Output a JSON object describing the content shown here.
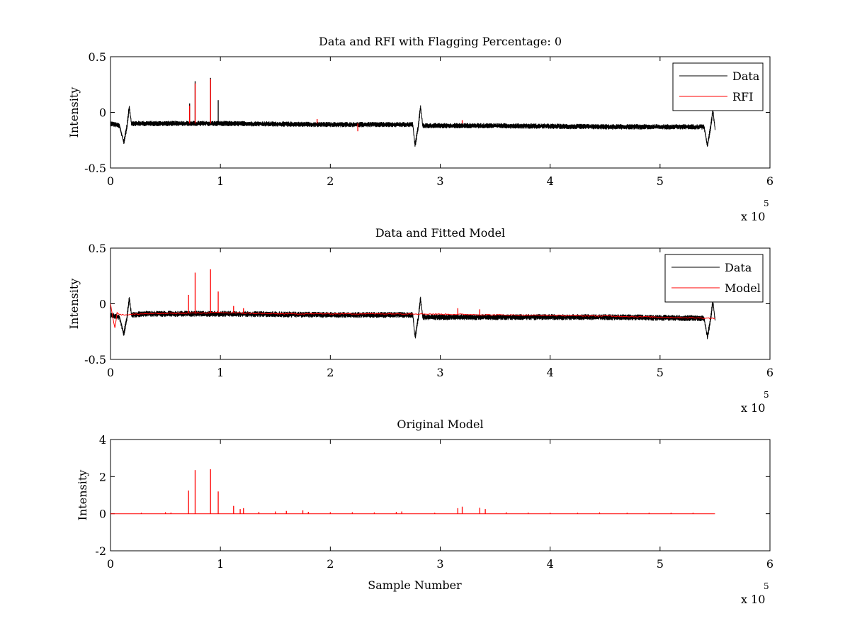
{
  "figure": {
    "background": "#ffffff"
  },
  "chart_data": [
    {
      "type": "line",
      "title": "Data and RFI with Flagging Percentage: 0",
      "xlabel": "",
      "ylabel": "Intensity",
      "xlim": [
        0,
        6
      ],
      "ylim": [
        -0.5,
        0.5
      ],
      "xticks": [
        "0",
        "1",
        "2",
        "3",
        "4",
        "5",
        "6"
      ],
      "yticks": [
        "0.5",
        "0",
        "-0.5"
      ],
      "x_multiplier": "x 10",
      "x_multiplier_exp": "5",
      "legend": {
        "placement": "top-right",
        "entries": [
          "Data",
          "RFI"
        ]
      },
      "series": [
        {
          "name": "Data",
          "color": "#000000",
          "kind": "noisy_band",
          "noise": 0.016,
          "baseline": [
            [
              0,
              -0.1
            ],
            [
              0.08,
              -0.12
            ],
            [
              0.12,
              -0.27
            ],
            [
              0.15,
              -0.12
            ],
            [
              0.17,
              0.05
            ],
            [
              0.19,
              -0.1
            ],
            [
              0.3,
              -0.1
            ],
            [
              1.0,
              -0.1
            ],
            [
              2.0,
              -0.11
            ],
            [
              2.75,
              -0.11
            ],
            [
              2.77,
              -0.3
            ],
            [
              2.8,
              -0.12
            ],
            [
              2.82,
              0.05
            ],
            [
              2.84,
              -0.12
            ],
            [
              3.5,
              -0.12
            ],
            [
              4.5,
              -0.13
            ],
            [
              5.4,
              -0.13
            ],
            [
              5.43,
              -0.3
            ],
            [
              5.46,
              -0.13
            ],
            [
              5.48,
              0.02
            ],
            [
              5.5,
              -0.15
            ]
          ],
          "spikes": [
            [
              0.72,
              0.08
            ],
            [
              0.77,
              0.28
            ],
            [
              0.91,
              0.31
            ],
            [
              0.98,
              0.11
            ]
          ]
        },
        {
          "name": "RFI",
          "color": "#ff0000",
          "kind": "sparse_spikes",
          "baseline": [],
          "spikes": [
            [
              0.72,
              0.06
            ],
            [
              0.77,
              0.26
            ],
            [
              0.91,
              0.3
            ],
            [
              1.88,
              -0.06
            ],
            [
              2.25,
              -0.17
            ],
            [
              3.2,
              -0.07
            ]
          ]
        }
      ]
    },
    {
      "type": "line",
      "title": "Data and Fitted Model",
      "xlabel": "",
      "ylabel": "Intensity",
      "xlim": [
        0,
        6
      ],
      "ylim": [
        -0.5,
        0.5
      ],
      "xticks": [
        "0",
        "1",
        "2",
        "3",
        "4",
        "5",
        "6"
      ],
      "yticks": [
        "0.5",
        "0",
        "-0.5"
      ],
      "x_multiplier": "x 10",
      "x_multiplier_exp": "5",
      "legend": {
        "placement": "top-right",
        "entries": [
          "Data",
          "Model"
        ]
      },
      "series": [
        {
          "name": "Data",
          "color": "#000000",
          "kind": "noisy_band",
          "noise": 0.018,
          "baseline": [
            [
              0,
              -0.1
            ],
            [
              0.08,
              -0.12
            ],
            [
              0.12,
              -0.27
            ],
            [
              0.15,
              -0.12
            ],
            [
              0.17,
              0.05
            ],
            [
              0.19,
              -0.1
            ],
            [
              0.3,
              -0.09
            ],
            [
              1.0,
              -0.09
            ],
            [
              2.0,
              -0.1
            ],
            [
              2.75,
              -0.1
            ],
            [
              2.77,
              -0.3
            ],
            [
              2.8,
              -0.12
            ],
            [
              2.82,
              0.05
            ],
            [
              2.84,
              -0.12
            ],
            [
              3.5,
              -0.12
            ],
            [
              4.5,
              -0.12
            ],
            [
              5.4,
              -0.13
            ],
            [
              5.43,
              -0.3
            ],
            [
              5.46,
              -0.13
            ],
            [
              5.48,
              0.02
            ],
            [
              5.5,
              -0.15
            ]
          ],
          "spikes": []
        },
        {
          "name": "Model",
          "color": "#ff0000",
          "kind": "smooth_line",
          "baseline": [
            [
              0,
              0.0
            ],
            [
              0.02,
              -0.12
            ],
            [
              0.04,
              -0.22
            ],
            [
              0.06,
              -0.08
            ],
            [
              0.1,
              -0.1
            ],
            [
              0.3,
              -0.09
            ],
            [
              1.0,
              -0.08
            ],
            [
              1.5,
              -0.09
            ],
            [
              2.0,
              -0.09
            ],
            [
              2.75,
              -0.09
            ],
            [
              3.5,
              -0.1
            ],
            [
              4.5,
              -0.11
            ],
            [
              5.5,
              -0.13
            ]
          ],
          "spikes": [
            [
              0.71,
              0.08
            ],
            [
              0.77,
              0.28
            ],
            [
              0.91,
              0.31
            ],
            [
              0.98,
              0.11
            ],
            [
              1.12,
              -0.02
            ],
            [
              1.21,
              -0.04
            ],
            [
              3.16,
              -0.04
            ],
            [
              3.36,
              -0.05
            ]
          ]
        }
      ]
    },
    {
      "type": "line",
      "title": "Original Model",
      "xlabel": "Sample Number",
      "ylabel": "Intensity",
      "xlim": [
        0,
        6
      ],
      "ylim": [
        -2,
        4
      ],
      "xticks": [
        "0",
        "1",
        "2",
        "3",
        "4",
        "5",
        "6"
      ],
      "yticks": [
        "4",
        "2",
        "0",
        "-2"
      ],
      "x_multiplier": "x 10",
      "x_multiplier_exp": "5",
      "legend": null,
      "series": [
        {
          "name": "Model",
          "color": "#ff0000",
          "kind": "sparse_spikes",
          "baseline": [
            [
              0.0,
              0
            ],
            [
              5.5,
              0
            ]
          ],
          "spikes": [
            [
              0.28,
              0.05
            ],
            [
              0.5,
              0.08
            ],
            [
              0.55,
              0.06
            ],
            [
              0.71,
              1.25
            ],
            [
              0.77,
              2.35
            ],
            [
              0.91,
              2.4
            ],
            [
              0.98,
              1.2
            ],
            [
              1.12,
              0.42
            ],
            [
              1.18,
              0.25
            ],
            [
              1.21,
              0.3
            ],
            [
              1.35,
              0.1
            ],
            [
              1.5,
              0.12
            ],
            [
              1.6,
              0.15
            ],
            [
              1.75,
              0.18
            ],
            [
              1.8,
              0.1
            ],
            [
              2.0,
              0.08
            ],
            [
              2.2,
              0.08
            ],
            [
              2.4,
              0.07
            ],
            [
              2.6,
              0.1
            ],
            [
              2.65,
              0.12
            ],
            [
              2.95,
              0.05
            ],
            [
              3.16,
              0.3
            ],
            [
              3.2,
              0.38
            ],
            [
              3.36,
              0.32
            ],
            [
              3.41,
              0.25
            ],
            [
              3.6,
              0.08
            ],
            [
              3.8,
              0.06
            ],
            [
              4.0,
              0.05
            ],
            [
              4.25,
              0.05
            ],
            [
              4.45,
              0.07
            ],
            [
              4.7,
              0.05
            ],
            [
              4.9,
              0.05
            ],
            [
              5.1,
              0.05
            ],
            [
              5.3,
              0.05
            ]
          ]
        }
      ]
    }
  ]
}
